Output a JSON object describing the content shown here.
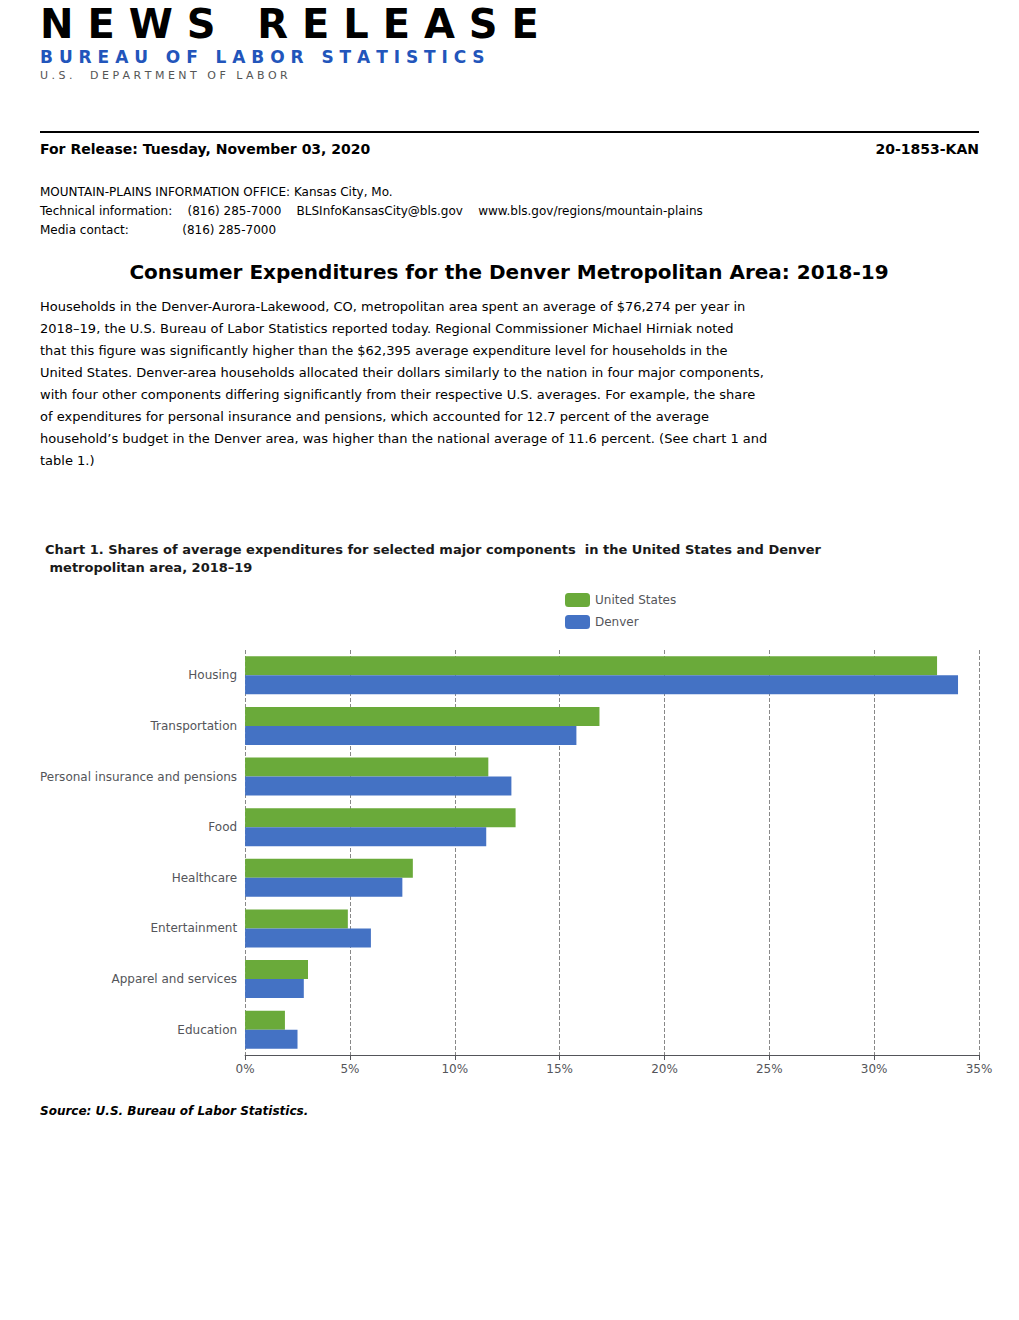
{
  "chart_data": {
    "type": "bar",
    "orientation": "horizontal",
    "title": "Chart 1. Shares of average expenditures for selected major components  in the United States and Denver\n metropolitan area, 2018–19",
    "categories": [
      "Housing",
      "Transportation",
      "Personal insurance and pensions",
      "Food",
      "Healthcare",
      "Entertainment",
      "Apparel and services",
      "Education"
    ],
    "series": [
      {
        "name": "United States",
        "color": "#6aaa3a",
        "values": [
          33.0,
          16.9,
          11.6,
          12.9,
          8.0,
          4.9,
          3.0,
          1.9
        ]
      },
      {
        "name": "Denver",
        "color": "#4472c4",
        "values": [
          34.0,
          15.8,
          12.7,
          11.5,
          7.5,
          6.0,
          2.8,
          2.5
        ]
      }
    ],
    "xlim": [
      0,
      35
    ],
    "xticks": [
      {
        "value": 0,
        "label": "0%"
      },
      {
        "value": 5,
        "label": "5%"
      },
      {
        "value": 10,
        "label": "10%"
      },
      {
        "value": 15,
        "label": "15%"
      },
      {
        "value": 20,
        "label": "20%"
      },
      {
        "value": 25,
        "label": "25%"
      },
      {
        "value": 30,
        "label": "30%"
      },
      {
        "value": 35,
        "label": "35%"
      }
    ],
    "grid": true,
    "legend": "top",
    "annotations": [
      "N E W S   R E L E A S E",
      "B U R E A U   O F   L A B O R   S T A T I S T I C S",
      "U . S .     D E P A R T M E N T   O F   L A B O R",
      "For Release: Tuesday, November 03, 2020",
      "20-1853-KAN",
      "MOUNTAIN-PLAINS INFORMATION OFFICE: Kansas City, Mo.",
      "Technical information:    (816) 285-7000    BLSInfoKansasCity@bls.gov    www.bls.gov/regions/mountain-plains",
      "Media contact:              (816) 285-7000",
      "Consumer Expenditures for the Denver Metropolitan Area: 2018-19",
      "Households in the Denver-Aurora-Lakewood, CO, metropolitan area spent an average of $76,274 per year in",
      "2018–19, the U.S. Bureau of Labor Statistics reported today. Regional Commissioner Michael Hirniak noted",
      "that this figure was significantly higher than the $62,395 average expenditure level for households in the",
      "United States. Denver-area households allocated their dollars similarly to the nation in four major components,",
      "with four other components differing significantly from their respective U.S. averages. For example, the share",
      "of expenditures for personal insurance and pensions, which accounted for 12.7 percent of the average",
      "household’s budget in the Denver area, was higher than the national average of 11.6 percent. (See chart 1 and",
      "table 1.)",
      "Source: U.S. Bureau of Labor Statistics."
    ]
  }
}
